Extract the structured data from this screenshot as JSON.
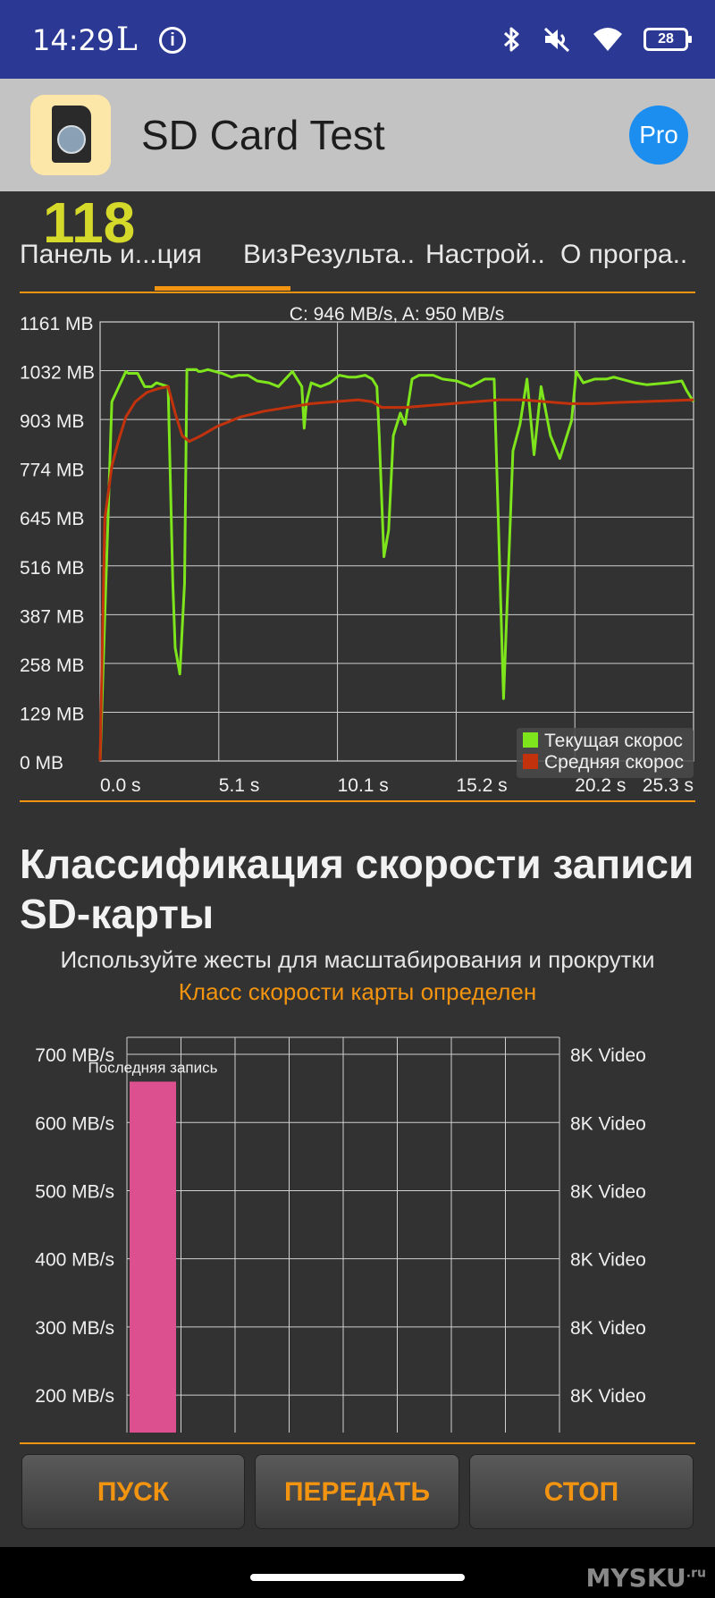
{
  "status_bar": {
    "time": "14:29",
    "letter": "L",
    "battery": "28",
    "icons": [
      "info-icon",
      "bluetooth-icon",
      "mute-icon",
      "wifi-icon",
      "battery-icon"
    ]
  },
  "app_bar": {
    "title": "SD Card Test",
    "pro_label": "Pro"
  },
  "counter": "118",
  "tabs": [
    "Панель и...ция",
    "Виз",
    "Результа..",
    "Настрой..",
    "О програ.."
  ],
  "active_tab_index": 1,
  "colors": {
    "accent": "#f39410",
    "current_series": "#7ee51c",
    "average_series": "#c2320c",
    "bar": "#dc5090",
    "status_bar": "#2b3994"
  },
  "speed_chart": {
    "type": "line",
    "title": "C: 946 MB/s, A: 950 MB/s",
    "y_ticks": [
      "1161 MB",
      "1032 MB",
      "903 MB",
      "774 MB",
      "645 MB",
      "516 MB",
      "387 MB",
      "258 MB",
      "129 MB",
      "0 MB"
    ],
    "x_ticks": [
      "0.0 s",
      "5.1 s",
      "10.1 s",
      "15.2 s",
      "20.2 s",
      "25.3 s"
    ],
    "ylim": [
      0,
      1161
    ],
    "xlim": [
      0,
      25.3
    ],
    "grid": true,
    "legend_position": "bottom-right",
    "legend": [
      "Текущая скорос",
      "Средняя скорос"
    ]
  },
  "chart_data": {
    "type": "line",
    "title": "C: 946 MB/s, A: 950 MB/s",
    "ylim": [
      0,
      1161
    ],
    "xlim": [
      0,
      25.3
    ],
    "series": [
      {
        "name": "Текущая скорос",
        "x": [
          0.0,
          0.5,
          1.1,
          1.2,
          1.6,
          1.9,
          2.2,
          2.4,
          2.9,
          3.1,
          3.2,
          3.4,
          3.6,
          3.7,
          4.1,
          4.2,
          4.3,
          4.6,
          5.2,
          5.6,
          5.9,
          6.3,
          6.7,
          7.2,
          7.6,
          8.2,
          8.6,
          8.7,
          8.8,
          9.0,
          9.4,
          9.8,
          10.2,
          10.6,
          10.9,
          11.3,
          11.6,
          11.8,
          11.9,
          12.1,
          12.3,
          12.5,
          12.8,
          13.0,
          13.3,
          13.6,
          13.9,
          14.2,
          14.6,
          15.2,
          15.8,
          16.4,
          16.8,
          17.2,
          17.6,
          17.9,
          18.2,
          18.5,
          18.8,
          19.2,
          19.6,
          19.8,
          20.1,
          20.3,
          20.6,
          21.1,
          21.6,
          21.9,
          22.2,
          22.8,
          23.3,
          24.2,
          24.8,
          25.0,
          25.3
        ],
        "values": [
          0,
          950,
          1030,
          1025,
          1025,
          990,
          990,
          1000,
          990,
          470,
          300,
          230,
          470,
          1035,
          1035,
          1030,
          1030,
          1035,
          1025,
          1015,
          1020,
          1020,
          1005,
          1000,
          990,
          1030,
          990,
          880,
          950,
          1000,
          990,
          1000,
          1020,
          1015,
          1015,
          1020,
          1010,
          990,
          860,
          540,
          610,
          860,
          920,
          890,
          1010,
          1020,
          1020,
          1020,
          1010,
          1005,
          990,
          1010,
          1010,
          165,
          820,
          890,
          1010,
          810,
          990,
          860,
          800,
          840,
          900,
          1030,
          1000,
          1010,
          1010,
          1015,
          1010,
          1000,
          995,
          1000,
          1005,
          980,
          950
        ]
      },
      {
        "name": "Средняя скорос",
        "x": [
          0.0,
          0.2,
          0.5,
          0.8,
          1.1,
          1.5,
          2.0,
          2.5,
          2.9,
          3.2,
          3.5,
          3.8,
          4.3,
          5.0,
          6.0,
          7.0,
          8.0,
          9.0,
          10.0,
          11.0,
          11.6,
          12.0,
          13.0,
          14.0,
          15.0,
          16.0,
          17.0,
          18.0,
          19.0,
          20.0,
          21.0,
          22.0,
          23.0,
          24.0,
          25.3
        ],
        "values": [
          0,
          640,
          780,
          850,
          910,
          950,
          975,
          985,
          990,
          920,
          860,
          845,
          860,
          885,
          910,
          925,
          935,
          945,
          950,
          955,
          950,
          935,
          935,
          940,
          945,
          950,
          955,
          955,
          950,
          945,
          945,
          948,
          950,
          952,
          955
        ]
      }
    ]
  },
  "section": {
    "title": "Классификация скорости записи SD-карты",
    "hint": "Используйте жесты для масштабирования и прокрутки",
    "status": "Класс скорости карты определен"
  },
  "class_chart": {
    "type": "bar",
    "y_ticks": [
      "700 MB/s",
      "600 MB/s",
      "500 MB/s",
      "400 MB/s",
      "300 MB/s",
      "200 MB/s"
    ],
    "right_labels": [
      "8K Video",
      "8K Video",
      "8K Video",
      "8K Video",
      "8K Video",
      "8K Video"
    ],
    "bar_label": "Последняя запись",
    "bar_value": 660,
    "ylim": [
      145,
      725
    ]
  },
  "buttons": {
    "start": "ПУСК",
    "send": "ПЕРЕДАТЬ",
    "stop": "СТОП"
  },
  "watermark": "MYSKU",
  "watermark_sup": ".ru"
}
